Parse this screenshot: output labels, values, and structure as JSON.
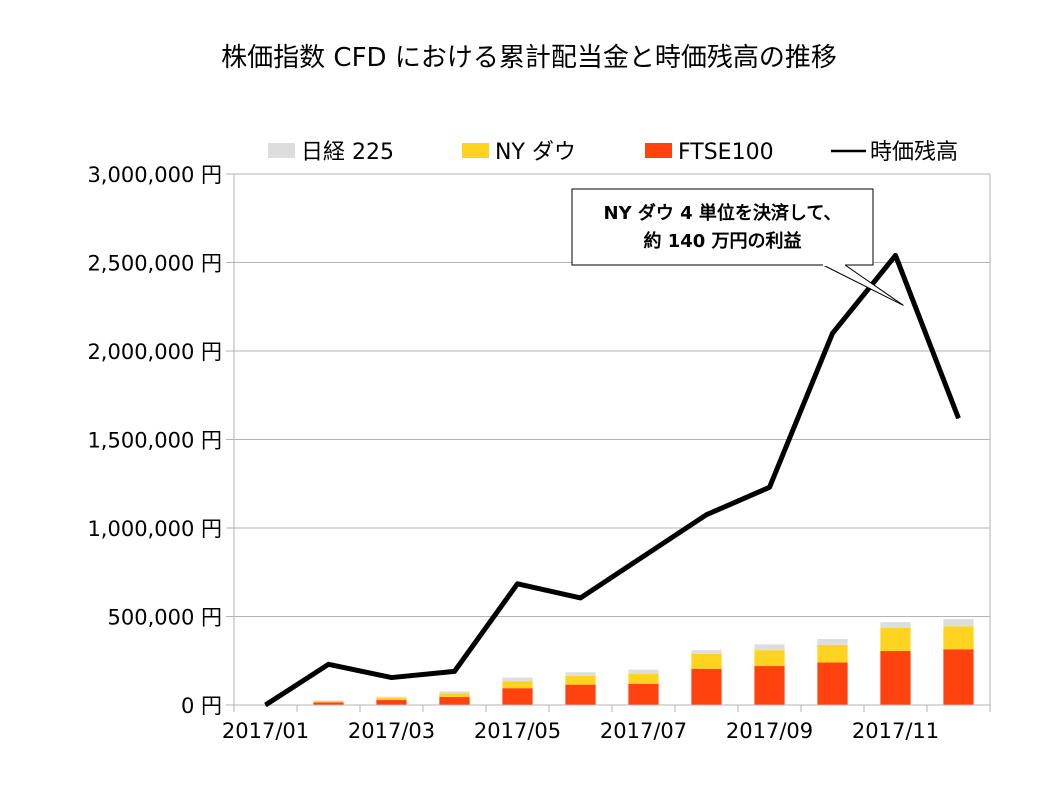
{
  "chart_data": {
    "type": "bar",
    "title": "株価指数 CFD における累計配当金と時価残高の推移",
    "xlabel": "",
    "ylabel": "",
    "x_tick_labels": [
      "2017/01",
      "2017/03",
      "2017/05",
      "2017/07",
      "2017/09",
      "2017/11"
    ],
    "y_tick_labels": [
      "3,000,000 円",
      "2,500,000 円",
      "2,000,000 円",
      "1,500,000 円",
      "1,000,000 円",
      "500,000 円",
      "0 円"
    ],
    "ylim": [
      0,
      3000000
    ],
    "grid": true,
    "legend_position": "top",
    "categories": [
      "2017/01",
      "2017/02",
      "2017/03",
      "2017/04",
      "2017/05",
      "2017/06",
      "2017/07",
      "2017/08",
      "2017/09",
      "2017/10",
      "2017/11",
      "2017/12"
    ],
    "series": [
      {
        "name": "FTSE100",
        "kind": "stacked-bar",
        "color": "#ff420e",
        "values": [
          0,
          15000,
          28000,
          45000,
          95000,
          115000,
          120000,
          205000,
          220000,
          240000,
          305000,
          315000
        ]
      },
      {
        "name": "NY ダウ",
        "kind": "stacked-bar",
        "color": "#ffd320",
        "values": [
          0,
          7000,
          12000,
          20000,
          40000,
          50000,
          55000,
          85000,
          90000,
          100000,
          130000,
          130000
        ]
      },
      {
        "name": "日経 225",
        "kind": "stacked-bar",
        "color": "#dddddd",
        "values": [
          0,
          4000,
          7000,
          12000,
          20000,
          20000,
          25000,
          20000,
          33000,
          33000,
          33000,
          40000
        ]
      },
      {
        "name": "時価残高",
        "kind": "line",
        "color": "#000000",
        "values": [
          0,
          230000,
          155000,
          190000,
          685000,
          605000,
          840000,
          1075000,
          1230000,
          2100000,
          2540000,
          1620000
        ]
      }
    ],
    "legend": [
      {
        "label": "日経 225",
        "marker": "square",
        "color": "#dddddd"
      },
      {
        "label": "NY ダウ",
        "marker": "square",
        "color": "#ffd320"
      },
      {
        "label": "FTSE100",
        "marker": "square",
        "color": "#ff420e"
      },
      {
        "label": "時価残高",
        "marker": "line",
        "color": "#000000"
      }
    ],
    "annotation": {
      "lines": [
        "NY ダウ 4 単位を決済して、",
        "約 140 万円の利益"
      ],
      "target_index": 10
    }
  }
}
